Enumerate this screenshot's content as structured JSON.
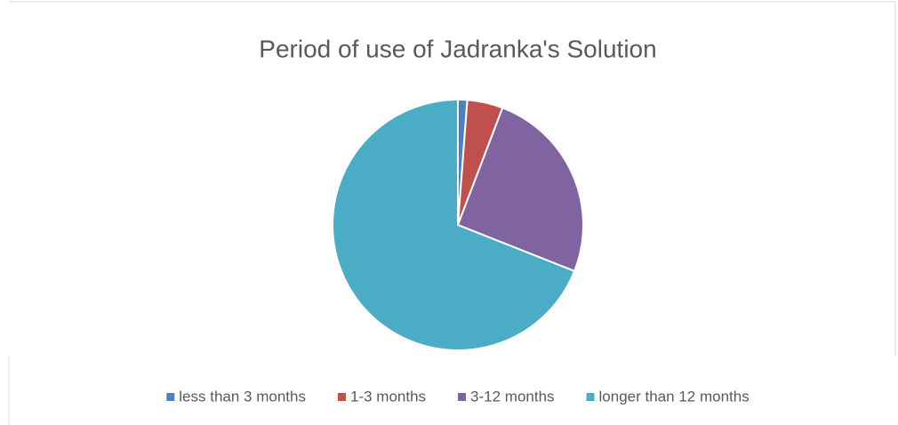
{
  "chart_data": {
    "type": "pie",
    "title": "Period of use of Jadranka's Solution",
    "categories": [
      "less than 3 months",
      "1-3 months",
      "3-12 months",
      "longer than 12 months"
    ],
    "values": [
      1.2,
      4.6,
      25.2,
      69.0
    ],
    "colors": [
      "#4f81bd",
      "#c0504d",
      "#8064a2",
      "#4bacc6"
    ],
    "legend": "bottom"
  }
}
